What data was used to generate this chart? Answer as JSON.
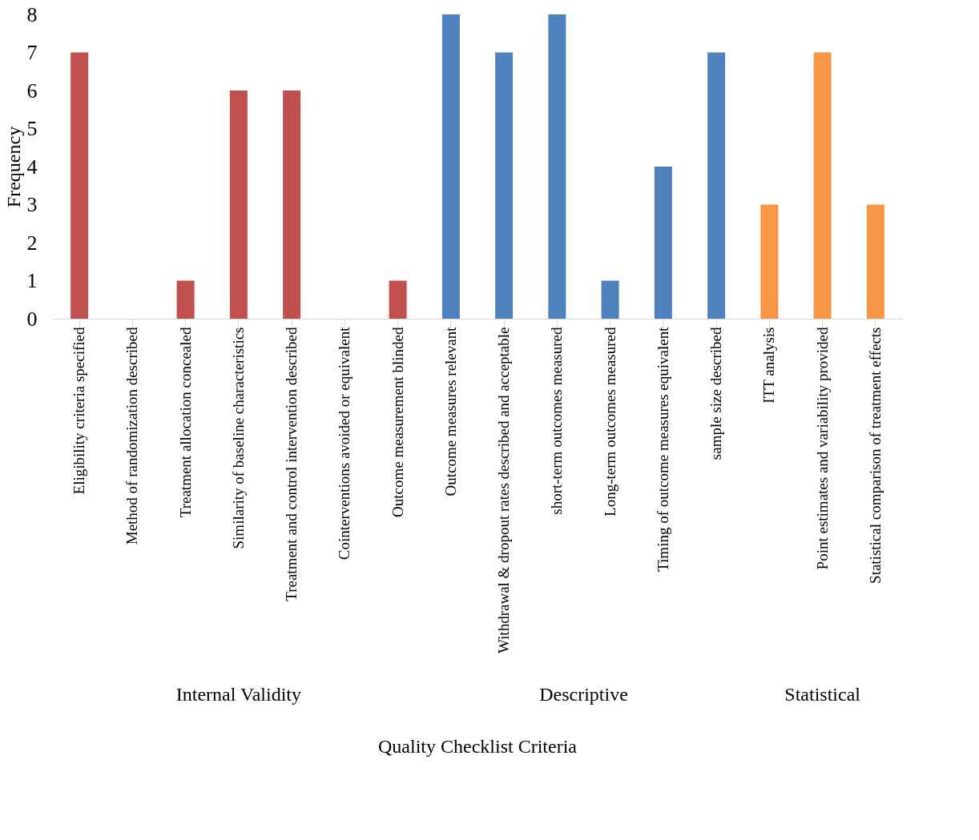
{
  "chart_data": {
    "type": "bar",
    "xlabel": "Quality Checklist Criteria",
    "ylabel": "Frequency",
    "categories": [
      "Eligibility criteria specified",
      "Method of randomization described",
      "Treatment allocation concealed",
      "Similarity of baseline characteristics",
      "Treatment and control intervention described",
      "Cointerventions avoided or equivalent",
      "Outcome measurement blinded",
      "Outcome measures relevant",
      "Withdrawal & dropout rates described and acceptable",
      "short-term outcomes measured",
      "Long-term outcomes measured",
      "Timing of outcome measures equivalent",
      "sample size described",
      "ITT analysis",
      "Point estimates and variability provided",
      "Statistical comparison of treatment effects"
    ],
    "values": [
      7,
      0,
      1,
      6,
      6,
      0,
      1,
      8,
      7,
      8,
      1,
      4,
      7,
      3,
      7,
      3
    ],
    "colors": [
      "#c0504d",
      "#c0504d",
      "#c0504d",
      "#c0504d",
      "#c0504d",
      "#c0504d",
      "#c0504d",
      "#4f81bd",
      "#4f81bd",
      "#4f81bd",
      "#4f81bd",
      "#4f81bd",
      "#4f81bd",
      "#f79646",
      "#f79646",
      "#f79646"
    ],
    "annotations": [
      "Internal Validity",
      "Descriptive",
      "Statistical"
    ],
    "ylim": [
      0,
      8
    ],
    "yticks": [
      0,
      1,
      2,
      3,
      4,
      5,
      6,
      7,
      8
    ],
    "grid": false
  }
}
